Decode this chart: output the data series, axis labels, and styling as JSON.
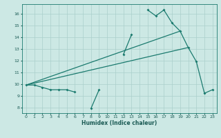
{
  "xlabel": "Humidex (Indice chaleur)",
  "bg_color": "#cce8e4",
  "grid_color": "#aacfcb",
  "line_color": "#1a7a6e",
  "xlim": [
    -0.5,
    23.5
  ],
  "ylim": [
    7.5,
    16.8
  ],
  "yticks": [
    8,
    9,
    10,
    11,
    12,
    13,
    14,
    15,
    16
  ],
  "xticks": [
    0,
    1,
    2,
    3,
    4,
    5,
    6,
    7,
    8,
    9,
    10,
    11,
    12,
    13,
    14,
    15,
    16,
    17,
    18,
    19,
    20,
    21,
    22,
    23
  ],
  "x_data": [
    0,
    1,
    2,
    3,
    4,
    5,
    6,
    7,
    8,
    9,
    10,
    11,
    12,
    13,
    14,
    15,
    16,
    17,
    18,
    19,
    20,
    21,
    22,
    23
  ],
  "y_main": [
    9.9,
    9.9,
    9.7,
    9.5,
    9.5,
    9.5,
    9.3,
    null,
    7.9,
    9.5,
    null,
    null,
    12.5,
    14.2,
    null,
    16.3,
    15.8,
    16.3,
    15.2,
    14.5,
    13.1,
    11.9,
    9.2,
    9.5
  ],
  "line1_x": [
    0,
    19
  ],
  "line1_y": [
    9.9,
    14.5
  ],
  "line2_x": [
    0,
    20
  ],
  "line2_y": [
    9.9,
    13.1
  ]
}
